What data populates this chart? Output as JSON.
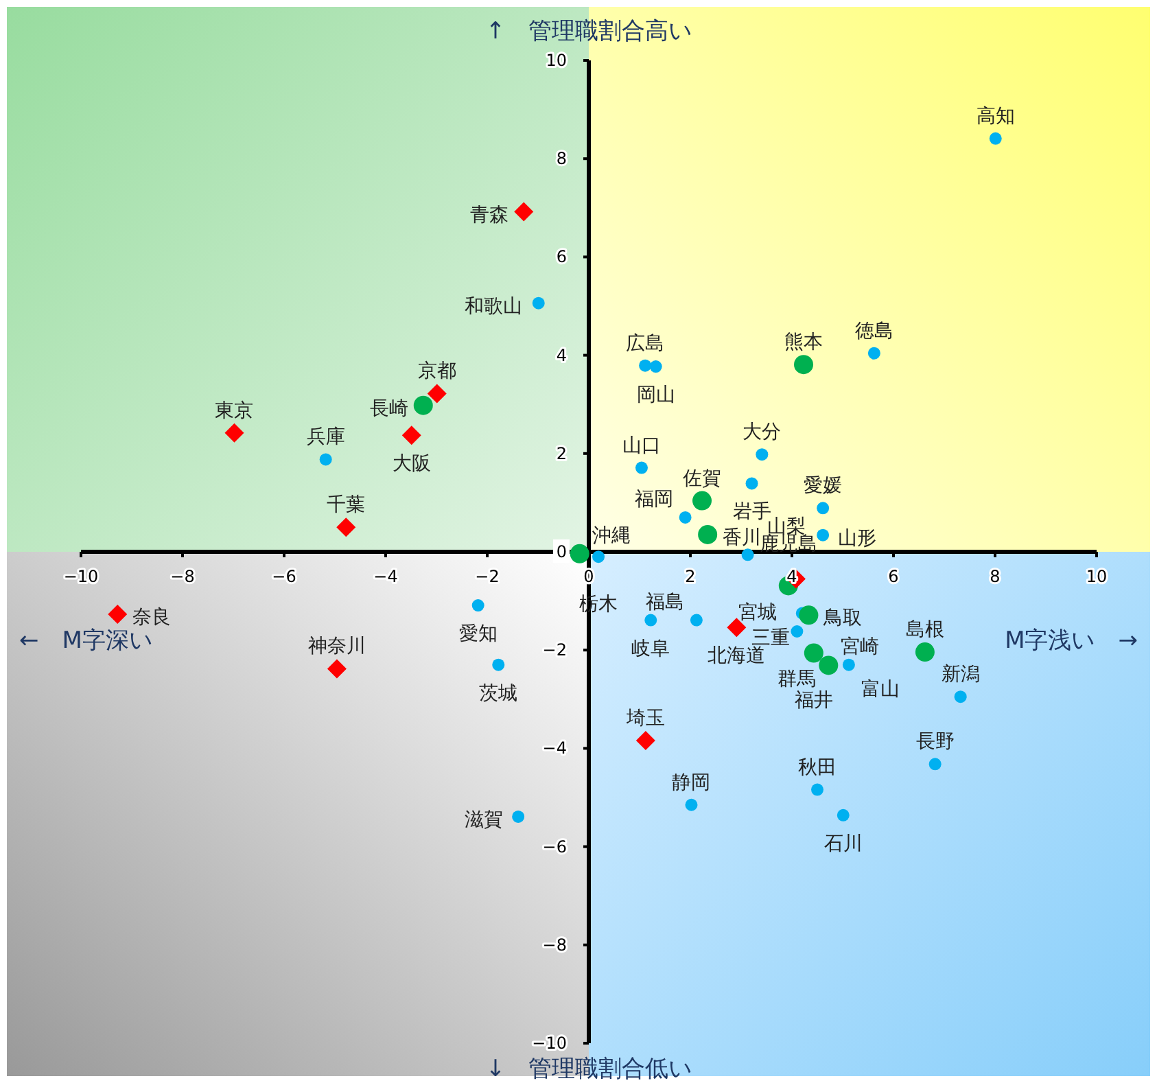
{
  "chart_data": {
    "type": "scatter",
    "xlim": [
      -10,
      10
    ],
    "ylim": [
      -10,
      10
    ],
    "xticks": [
      -10,
      -8,
      -6,
      -4,
      -2,
      0,
      2,
      4,
      6,
      8,
      10
    ],
    "yticks": [
      -10,
      -8,
      -6,
      -4,
      -2,
      0,
      2,
      4,
      6,
      8,
      10
    ],
    "grid": false,
    "legend": false,
    "series": [
      {
        "color": "#ff0000",
        "marker": "diamond",
        "x": [
          -1.28,
          -2.99,
          -3.49,
          -6.98,
          -4.78,
          -9.28,
          -4.96,
          4.08,
          2.91,
          1.12
        ],
        "values": [
          6.92,
          3.22,
          2.37,
          2.42,
          0.5,
          -1.27,
          -2.38,
          -0.55,
          -1.54,
          -3.84
        ]
      },
      {
        "color": "#00b050",
        "marker": "circle",
        "x": [
          -3.26,
          -0.18,
          4.23,
          2.23,
          2.34,
          3.93,
          4.33,
          4.43,
          4.72,
          6.62
        ],
        "values": [
          2.98,
          -0.04,
          3.81,
          1.04,
          0.35,
          -0.69,
          -1.29,
          -2.06,
          -2.31,
          -2.04
        ]
      },
      {
        "color": "#00b0f0",
        "marker": "circle",
        "x": [
          -0.99,
          -5.18,
          0.19,
          8.01,
          1.11,
          1.32,
          5.62,
          3.41,
          1.04,
          3.21,
          4.61,
          1.9,
          4.61,
          3.13,
          -2.18,
          -1.78,
          -1.39,
          4.2,
          1.22,
          2.12,
          4.1,
          5.12,
          7.32,
          6.82,
          4.5,
          2.02,
          5.01
        ],
        "values": [
          5.06,
          1.88,
          -0.1,
          8.41,
          3.79,
          3.77,
          4.04,
          1.98,
          1.71,
          1.39,
          0.89,
          0.7,
          0.34,
          -0.06,
          -1.09,
          -2.3,
          -5.39,
          -1.25,
          -1.39,
          -1.39,
          -1.62,
          -2.3,
          -2.95,
          -4.32,
          -4.84,
          -5.15,
          -5.36
        ]
      }
    ],
    "annotations": [
      "↑　管理職割合高い",
      "↓　管理職割合低い",
      "←　M字深い",
      "M字浅い　→",
      {
        "text": "青森",
        "x": -1.28,
        "y": 6.92
      },
      {
        "text": "京都",
        "x": -2.99,
        "y": 3.22
      },
      {
        "text": "大阪",
        "x": -3.49,
        "y": 2.37
      },
      {
        "text": "東京",
        "x": -6.98,
        "y": 2.42
      },
      {
        "text": "千葉",
        "x": -4.78,
        "y": 0.5
      },
      {
        "text": "奈良",
        "x": -9.28,
        "y": -1.27
      },
      {
        "text": "神奈川",
        "x": -4.96,
        "y": -2.38
      },
      {
        "text": "宮城",
        "x": 4.08,
        "y": -0.55
      },
      {
        "text": "北海道",
        "x": 2.91,
        "y": -1.54
      },
      {
        "text": "埼玉",
        "x": 1.12,
        "y": -3.84
      },
      {
        "text": "長崎",
        "x": -3.26,
        "y": 2.98
      },
      {
        "text": "沖縄",
        "x": -0.18,
        "y": -0.04
      },
      {
        "text": "熊本",
        "x": 4.23,
        "y": 3.81
      },
      {
        "text": "佐賀",
        "x": 2.23,
        "y": 1.04
      },
      {
        "text": "香川",
        "x": 2.34,
        "y": 0.35
      },
      {
        "text": "鹿児島",
        "x": 3.93,
        "y": -0.69
      },
      {
        "text": "鳥取",
        "x": 4.33,
        "y": -1.29
      },
      {
        "text": "福井",
        "x": 4.43,
        "y": -2.06
      },
      {
        "text": "宮崎",
        "x": 4.72,
        "y": -2.31
      },
      {
        "text": "島根",
        "x": 6.62,
        "y": -2.04
      },
      {
        "text": "和歌山",
        "x": -0.99,
        "y": 5.06
      },
      {
        "text": "兵庫",
        "x": -5.18,
        "y": 1.88
      },
      {
        "text": "栃木",
        "x": 0.19,
        "y": -0.1
      },
      {
        "text": "高知",
        "x": 8.01,
        "y": 8.41
      },
      {
        "text": "広島",
        "x": 1.11,
        "y": 3.79
      },
      {
        "text": "岡山",
        "x": 1.32,
        "y": 3.77
      },
      {
        "text": "徳島",
        "x": 5.62,
        "y": 4.04
      },
      {
        "text": "大分",
        "x": 3.41,
        "y": 1.98
      },
      {
        "text": "山口",
        "x": 1.04,
        "y": 1.71
      },
      {
        "text": "岩手",
        "x": 3.21,
        "y": 1.39
      },
      {
        "text": "愛媛",
        "x": 4.61,
        "y": 0.89
      },
      {
        "text": "福岡",
        "x": 1.9,
        "y": 0.7
      },
      {
        "text": "山形",
        "x": 4.61,
        "y": 0.34
      },
      {
        "text": "山梨",
        "x": 3.13,
        "y": -0.06
      },
      {
        "text": "愛知",
        "x": -2.18,
        "y": -1.09
      },
      {
        "text": "茨城",
        "x": -1.78,
        "y": -2.3
      },
      {
        "text": "滋賀",
        "x": -1.39,
        "y": -5.39
      },
      {
        "text": "三重",
        "x": 4.2,
        "y": -1.25
      },
      {
        "text": "岐阜",
        "x": 1.22,
        "y": -1.39
      },
      {
        "text": "福島",
        "x": 2.12,
        "y": -1.39
      },
      {
        "text": "群馬",
        "x": 4.1,
        "y": -1.62
      },
      {
        "text": "富山",
        "x": 5.12,
        "y": -2.3
      },
      {
        "text": "新潟",
        "x": 7.32,
        "y": -2.95
      },
      {
        "text": "長野",
        "x": 6.82,
        "y": -4.32
      },
      {
        "text": "秋田",
        "x": 4.5,
        "y": -4.84
      },
      {
        "text": "静岡",
        "x": 2.02,
        "y": -5.15
      },
      {
        "text": "石川",
        "x": 5.01,
        "y": -5.36
      }
    ]
  }
}
